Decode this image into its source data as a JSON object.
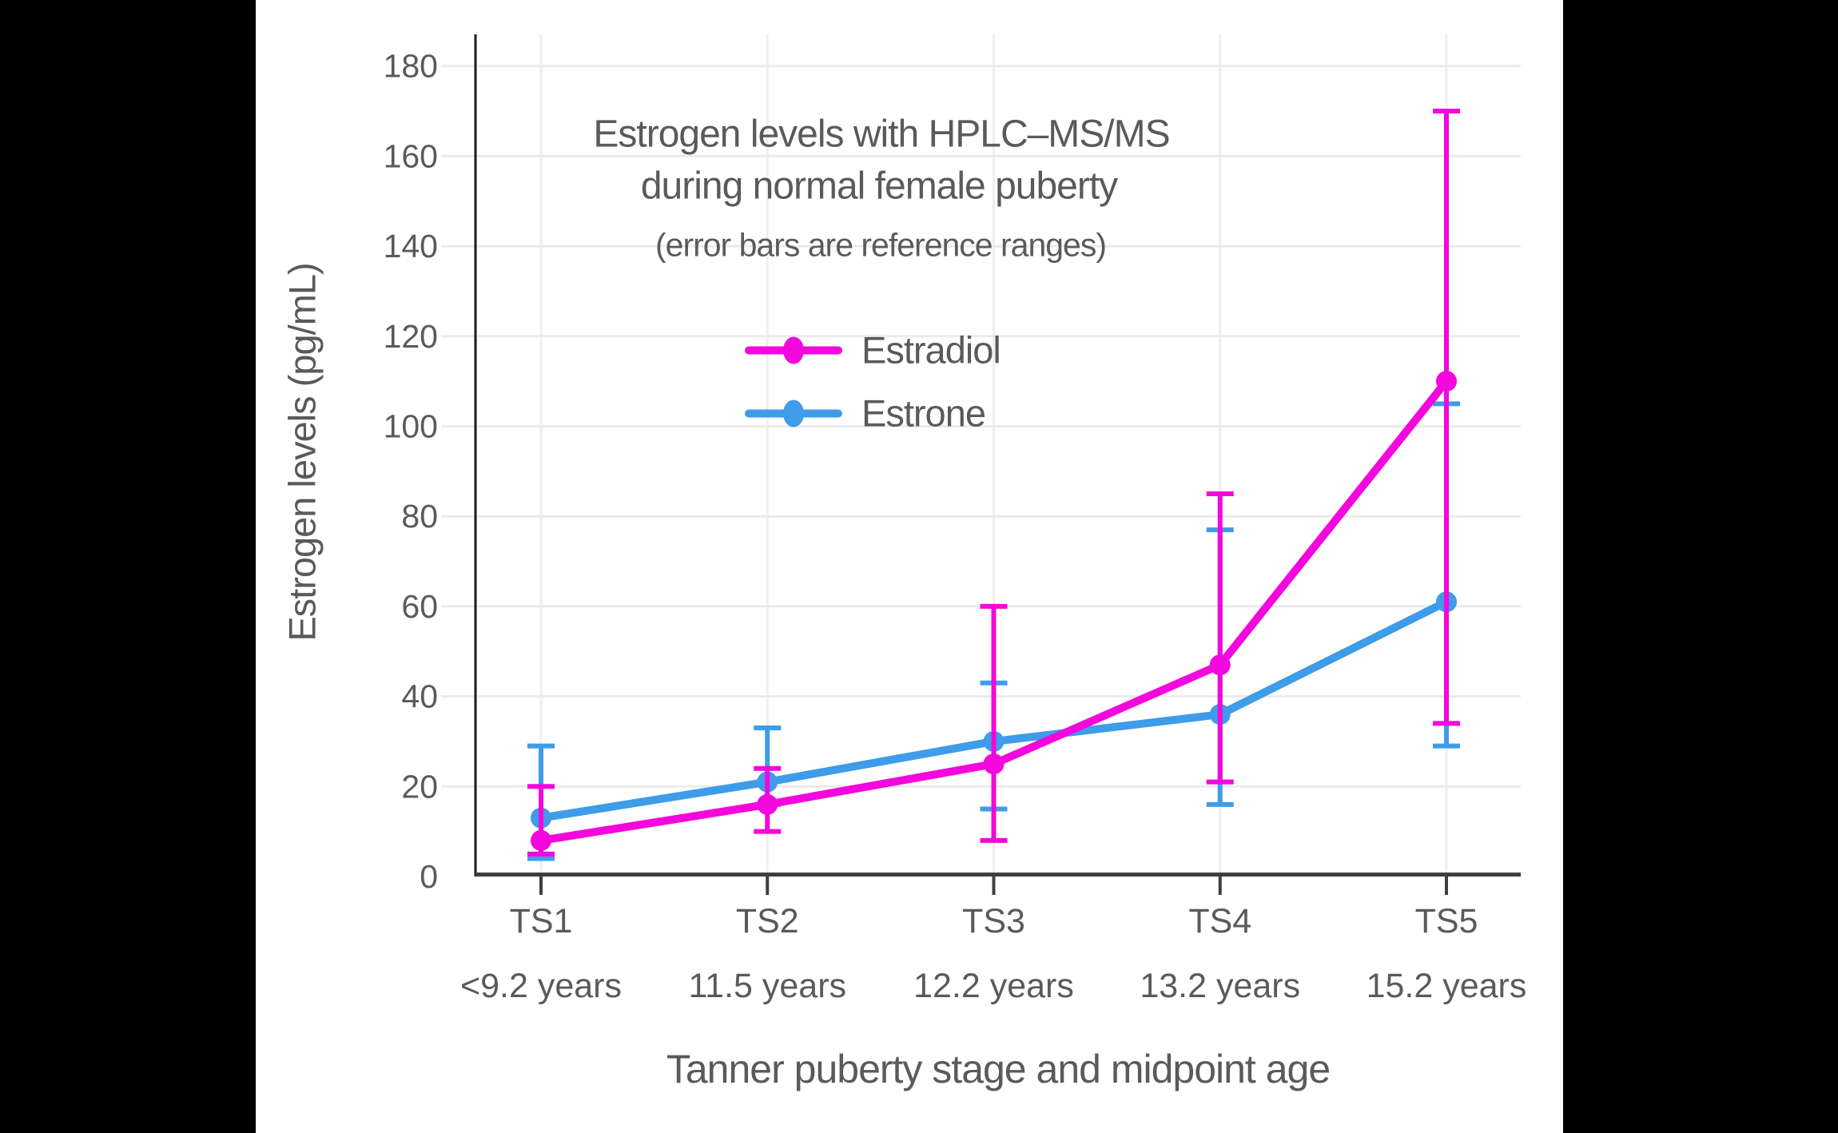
{
  "chart_data": {
    "type": "line",
    "title": "Estrogen levels with HPLC–MS/MS during normal female puberty",
    "title_lines": [
      "Estrogen levels with HPLC–MS/MS",
      "during normal female puberty"
    ],
    "subtitle": "(error bars are reference ranges)",
    "error_bar_meaning": "reference ranges",
    "xlabel": "Tanner puberty stage and midpoint age",
    "ylabel": "Estrogen levels (pg/mL)",
    "units": "pg/mL",
    "categories": [
      "TS1",
      "TS2",
      "TS3",
      "TS4",
      "TS5"
    ],
    "category_ages": [
      "<9.2 years",
      "11.5 years",
      "12.2 years",
      "13.2 years",
      "15.2 years"
    ],
    "yticks": [
      0,
      20,
      40,
      60,
      80,
      100,
      120,
      140,
      160,
      180
    ],
    "ylim": [
      0,
      180
    ],
    "grid": true,
    "legend_position": "upper-center-inside",
    "series": [
      {
        "name": "Estradiol",
        "color": "#F307DC",
        "values": [
          8,
          16,
          25,
          47,
          110
        ],
        "error_low": [
          5,
          10,
          8,
          21,
          34
        ],
        "error_high": [
          20,
          24,
          60,
          85,
          170
        ]
      },
      {
        "name": "Estrone",
        "color": "#3E9CE9",
        "values": [
          13,
          21,
          30,
          36,
          61
        ],
        "error_low": [
          4,
          16,
          15,
          16,
          29
        ],
        "error_high": [
          29,
          33,
          43,
          77,
          105
        ]
      }
    ],
    "colors": {
      "estradiol": "#F307DC",
      "estrone": "#3E9CE9",
      "text": "#5A5A5A",
      "gridline": "#EBEBEB",
      "y_axis_line": "#1A1A1A",
      "x_axis_line": "#3F3F3F",
      "background": "#FFFFFF",
      "pillarbox": "#000000"
    }
  }
}
